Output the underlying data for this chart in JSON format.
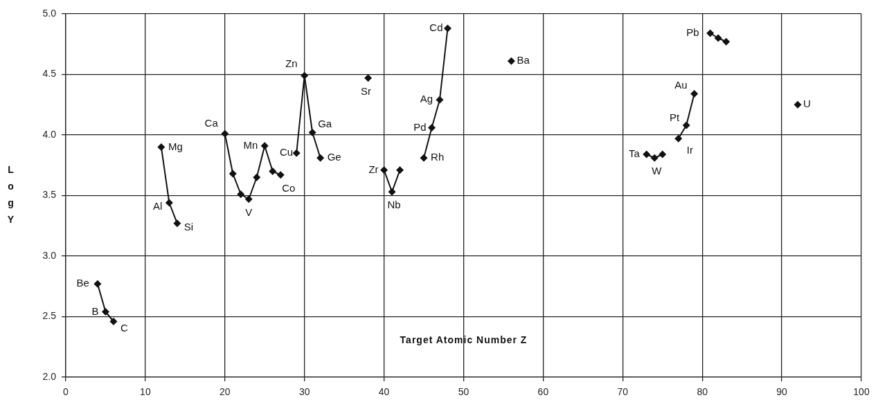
{
  "chart_data": {
    "type": "line",
    "xlabel": "Target Atomic Number Z",
    "ylabel": "L o g Y",
    "series": [
      {
        "color": "#111111",
        "x": [
          4,
          5,
          6,
          7,
          12,
          13,
          14,
          15,
          20,
          21,
          22,
          23,
          24,
          25,
          26,
          27,
          28,
          29,
          30,
          31,
          32,
          33,
          38,
          39,
          40,
          41,
          42,
          43,
          45,
          46,
          47,
          48,
          49,
          56,
          57,
          73,
          74,
          75,
          76,
          77,
          78,
          79,
          80,
          81,
          82,
          83,
          84,
          92
        ],
        "values": [
          2.77,
          2.54,
          2.46,
          null,
          3.9,
          3.44,
          3.27,
          null,
          4.01,
          3.68,
          3.51,
          3.47,
          3.65,
          3.91,
          3.7,
          3.67,
          null,
          3.85,
          4.49,
          4.02,
          3.81,
          null,
          4.47,
          null,
          3.71,
          3.53,
          3.71,
          null,
          3.81,
          4.06,
          4.29,
          4.88,
          null,
          4.61,
          null,
          3.84,
          3.81,
          3.84,
          null,
          3.97,
          4.08,
          4.34,
          null,
          4.84,
          4.8,
          4.77,
          null,
          4.25
        ]
      }
    ],
    "xlim": [
      0,
      100
    ],
    "xticks": [
      0,
      10,
      20,
      30,
      40,
      50,
      60,
      70,
      80,
      90,
      100
    ],
    "ylim": [
      2,
      5
    ],
    "yticks": [
      {
        "value": 2,
        "label": "2.0"
      },
      {
        "value": 2.5,
        "label": "2.5"
      },
      {
        "value": 3,
        "label": "3.0"
      },
      {
        "value": 3.5,
        "label": "3.5"
      },
      {
        "value": 4,
        "label": "4.0"
      },
      {
        "value": 4.5,
        "label": "4.5"
      },
      {
        "value": 5,
        "label": "5.0"
      }
    ],
    "grid": true,
    "legend": false,
    "marker": "diamond",
    "line_style": "solid",
    "annotations": [
      {
        "text": "Be",
        "x": 4,
        "y": 2.77
      },
      {
        "text": "B",
        "x": 5,
        "y": 2.54
      },
      {
        "text": "C",
        "x": 6,
        "y": 2.46
      },
      {
        "text": "Mg",
        "x": 12,
        "y": 3.9
      },
      {
        "text": "Al",
        "x": 13,
        "y": 3.44
      },
      {
        "text": "Si",
        "x": 14,
        "y": 3.27
      },
      {
        "text": "Ca",
        "x": 20,
        "y": 4.01
      },
      {
        "text": "V",
        "x": 23,
        "y": 3.47
      },
      {
        "text": "Mn",
        "x": 25,
        "y": 3.91
      },
      {
        "text": "Co",
        "x": 27,
        "y": 3.67
      },
      {
        "text": "Cu",
        "x": 29,
        "y": 3.85
      },
      {
        "text": "Zn",
        "x": 30,
        "y": 4.49
      },
      {
        "text": "Ga",
        "x": 31,
        "y": 4.02
      },
      {
        "text": "Ge",
        "x": 32,
        "y": 3.81
      },
      {
        "text": "Sr",
        "x": 38,
        "y": 4.47
      },
      {
        "text": "Zr",
        "x": 40,
        "y": 3.71
      },
      {
        "text": "Nb",
        "x": 41,
        "y": 3.53
      },
      {
        "text": "Rh",
        "x": 45,
        "y": 3.81
      },
      {
        "text": "Pd",
        "x": 46,
        "y": 4.06
      },
      {
        "text": "Ag",
        "x": 47,
        "y": 4.29
      },
      {
        "text": "Cd",
        "x": 48,
        "y": 4.88
      },
      {
        "text": "Ba",
        "x": 56,
        "y": 4.61
      },
      {
        "text": "Ta",
        "x": 73,
        "y": 3.84
      },
      {
        "text": "W",
        "x": 74,
        "y": 3.81
      },
      {
        "text": "Ir",
        "x": 77,
        "y": 3.97
      },
      {
        "text": "Pt",
        "x": 78,
        "y": 4.08
      },
      {
        "text": "Au",
        "x": 79,
        "y": 4.34
      },
      {
        "text": "Pb",
        "x": 81,
        "y": 4.84
      },
      {
        "text": "U",
        "x": 92,
        "y": 4.25
      }
    ]
  }
}
